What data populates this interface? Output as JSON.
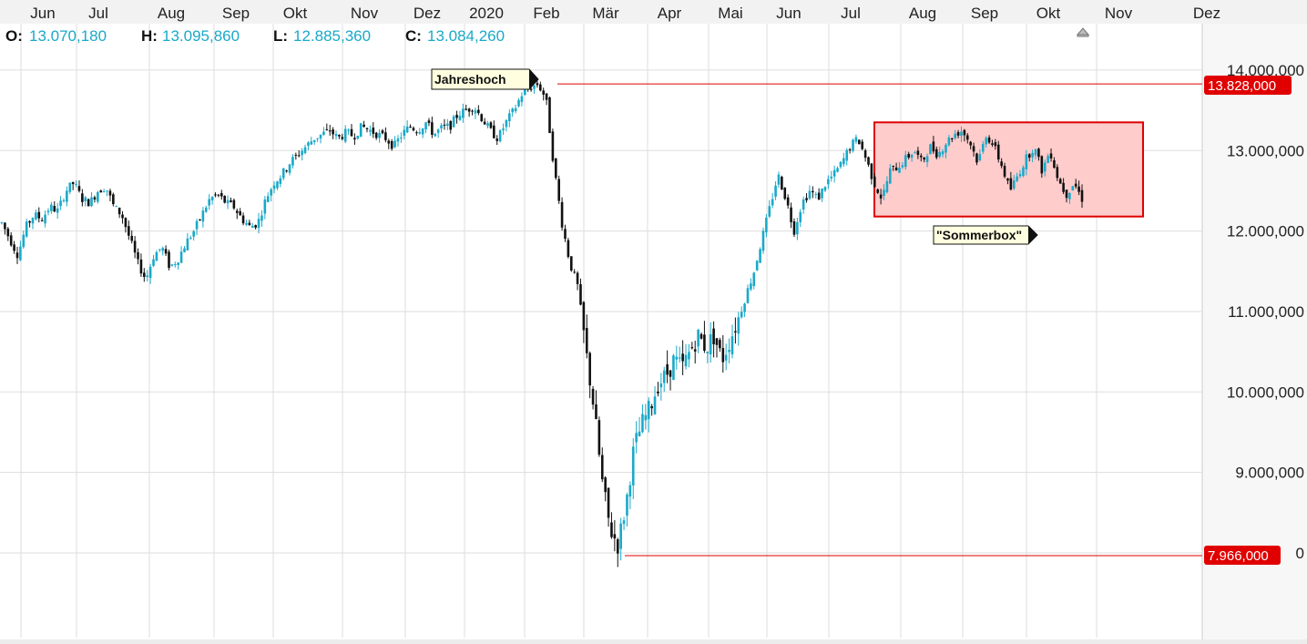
{
  "ohlc": {
    "o_label": "O:",
    "o_value": "13.070,180",
    "h_label": "H:",
    "h_value": "13.095,860",
    "l_label": "L:",
    "l_value": "12.885,360",
    "c_label": "C:",
    "c_value": "13.084,260"
  },
  "colors": {
    "up": "#1aa9c9",
    "down": "#111111",
    "level_line": "#e00000",
    "price_tag_bg": "#e00000",
    "box_fill": "#ffcccc",
    "box_border": "#e00000",
    "grid": "#dddddd",
    "note_bg": "#ffffe0"
  },
  "annotations": {
    "jahreshoch": "Jahreshoch",
    "sommerbox": "\"Sommerbox\""
  },
  "price_tags": {
    "high": "13.828,000",
    "low": "7.966,000"
  },
  "chart_data": {
    "type": "candlestick",
    "x_axis_months": [
      "Jun",
      "Jul",
      "Aug",
      "Sep",
      "Okt",
      "Nov",
      "Dez",
      "2020",
      "Feb",
      "Mär",
      "Apr",
      "Mai",
      "Jun",
      "Jul",
      "Aug",
      "Sep",
      "Okt",
      "Nov",
      "Dez"
    ],
    "y_ticks": [
      "9.000,000",
      "10.000,000",
      "11.000,000",
      "12.000,000",
      "13.000,000",
      "14.000,000"
    ],
    "y_tick_values": [
      9000,
      10000,
      11000,
      12000,
      13000,
      14000
    ],
    "ylim": [
      7000,
      14700
    ],
    "grid": true,
    "levels": [
      {
        "label": "Jahreshoch",
        "value": 13828,
        "from_month": "Feb"
      },
      {
        "label": "low",
        "value": 7966,
        "from_month": "Mär"
      }
    ],
    "sommerbox": {
      "x_from": "Jul",
      "x_to": "Nov",
      "y_low": 12180,
      "y_high": 13350
    },
    "series": [
      {
        "month": "Jun",
        "points": [
          12100,
          11900,
          11700,
          12050,
          12200,
          12150,
          12300,
          12250
        ]
      },
      {
        "month": "Jul",
        "points": [
          12500,
          12600,
          12400,
          12350,
          12500,
          12550,
          12300,
          12200
        ]
      },
      {
        "month": "Aug",
        "points": [
          11900,
          11600,
          11400,
          11700,
          11800,
          11550,
          11650,
          11850
        ]
      },
      {
        "month": "Sep",
        "points": [
          12000,
          12200,
          12400,
          12450,
          12350,
          12300,
          12150,
          12050
        ]
      },
      {
        "month": "Okt",
        "points": [
          12100,
          12400,
          12600,
          12700,
          12850,
          12950,
          13050,
          13150
        ]
      },
      {
        "month": "Nov",
        "points": [
          13200,
          13250,
          13150,
          13220,
          13180,
          13300,
          13250,
          13200
        ]
      },
      {
        "month": "Dez",
        "points": [
          13150,
          13050,
          13200,
          13300,
          13250,
          13350,
          13200,
          13280
        ]
      },
      {
        "month": "2020",
        "points": [
          13300,
          13450,
          13500,
          13550,
          13400,
          13250,
          13150,
          13350
        ]
      },
      {
        "month": "Feb",
        "points": [
          13500,
          13700,
          13780,
          13828,
          13650,
          12800,
          12100,
          11600
        ]
      },
      {
        "month": "Mär",
        "points": [
          11300,
          10500,
          9800,
          8900,
          8300,
          8100,
          8600,
          9300
        ]
      },
      {
        "month": "Apr",
        "points": [
          9600,
          9800,
          10100,
          10200,
          10400,
          10300,
          10500,
          10700
        ]
      },
      {
        "month": "Mai",
        "points": [
          10550,
          10700,
          10400,
          10650,
          10900,
          11200,
          11500,
          11900
        ]
      },
      {
        "month": "Jun",
        "points": [
          12300,
          12700,
          12400,
          12000,
          12350,
          12500,
          12400,
          12600
        ]
      },
      {
        "month": "Jul",
        "points": [
          12700,
          12850,
          13050,
          13150,
          12900,
          12600,
          12400,
          12750
        ]
      },
      {
        "month": "Aug",
        "points": [
          12800,
          12900,
          13000,
          12850,
          13050,
          12950,
          13100,
          13200
        ]
      },
      {
        "month": "Sep",
        "points": [
          13250,
          13100,
          12850,
          13200,
          13050,
          12800,
          12500,
          12700
        ]
      },
      {
        "month": "Okt",
        "points": [
          12900,
          13050,
          12750,
          13000,
          12650,
          12450,
          12600,
          12400
        ]
      }
    ]
  }
}
